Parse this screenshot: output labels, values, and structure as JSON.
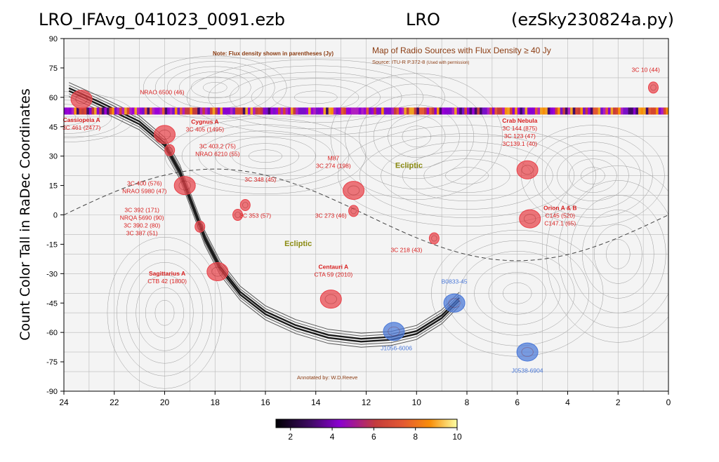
{
  "header": {
    "left": "LRO_IFAvg_041023_0091.ezb",
    "center": "LRO",
    "right": "(ezSky230824a.py)"
  },
  "chart_data": {
    "type": "scatter",
    "ylabel": "Count Color Tall in RaDec Coordinates",
    "xlim": [
      24,
      0
    ],
    "ylim": [
      -90,
      90
    ],
    "x_ticks": [
      "24",
      "22",
      "20",
      "18",
      "16",
      "14",
      "12",
      "10",
      "8",
      "6",
      "4",
      "2",
      "0"
    ],
    "y_ticks": [
      "90",
      "75",
      "60",
      "45",
      "30",
      "15",
      "0",
      "-15",
      "-30",
      "-45",
      "-60",
      "-75",
      "-90"
    ],
    "map_title": "Map of Radio Sources with Flux Density ≥ 40 Jy",
    "map_source": "Source: ITU-R P.372-8",
    "map_source_note": "(Used with permission)",
    "map_note": "Note: Flux density shown in parentheses (Jy)",
    "annotator": "Annotated by: W.D.Reeve",
    "ecliptic_label": "Ecliptic",
    "observed_band": {
      "dec": 53,
      "ra_range": [
        24,
        0
      ]
    },
    "colorbar": {
      "ticks": [
        "2",
        "4",
        "6",
        "8",
        "10"
      ],
      "min": 1.3,
      "max": 10
    },
    "sources": [
      {
        "ra": 23.3,
        "dec": 59,
        "color": "red",
        "big": true
      },
      {
        "ra": 20.0,
        "dec": 41,
        "color": "red",
        "big": true
      },
      {
        "ra": 19.8,
        "dec": 33,
        "color": "red",
        "big": false
      },
      {
        "ra": 19.2,
        "dec": 15,
        "color": "red",
        "big": true
      },
      {
        "ra": 18.6,
        "dec": -6,
        "color": "red",
        "big": false
      },
      {
        "ra": 17.9,
        "dec": -29,
        "color": "red",
        "big": true
      },
      {
        "ra": 17.1,
        "dec": 0,
        "color": "red",
        "big": false
      },
      {
        "ra": 16.8,
        "dec": 5,
        "color": "red",
        "big": false
      },
      {
        "ra": 13.4,
        "dec": -43,
        "color": "red",
        "big": true
      },
      {
        "ra": 12.5,
        "dec": 12.5,
        "color": "red",
        "big": true
      },
      {
        "ra": 12.5,
        "dec": 2,
        "color": "red",
        "big": false
      },
      {
        "ra": 9.3,
        "dec": -12,
        "color": "red",
        "big": false
      },
      {
        "ra": 5.6,
        "dec": 23,
        "color": "red",
        "big": true
      },
      {
        "ra": 5.5,
        "dec": -2,
        "color": "red",
        "big": true
      },
      {
        "ra": 0.6,
        "dec": 65,
        "color": "red",
        "big": false
      },
      {
        "ra": 10.9,
        "dec": -59.5,
        "color": "blue",
        "big": true
      },
      {
        "ra": 8.5,
        "dec": -45,
        "color": "blue",
        "big": true
      },
      {
        "ra": 5.6,
        "dec": -70,
        "color": "blue",
        "big": true
      }
    ],
    "labels": [
      {
        "ra": 23.3,
        "dec": 47.5,
        "lines": [
          "Cassiopeia A",
          "3C 461 (2477)"
        ],
        "bold_first": true
      },
      {
        "ra": 20.1,
        "dec": 61.5,
        "lines": [
          "NRAO 6500 (46)"
        ],
        "bold_first": false
      },
      {
        "ra": 18.4,
        "dec": 46.5,
        "lines": [
          "Cygnus A",
          "3C 405 (1495)"
        ],
        "bold_first": true
      },
      {
        "ra": 17.9,
        "dec": 34,
        "lines": [
          "3C 403.2 (75)",
          "NRAO 6210 (55)"
        ],
        "bold_first": false
      },
      {
        "ra": 20.8,
        "dec": 15,
        "lines": [
          "3C 400 (576)",
          "NRAO 5980 (47)"
        ],
        "bold_first": false
      },
      {
        "ra": 16.2,
        "dec": 17,
        "lines": [
          "3C 348 (45)"
        ],
        "bold_first": false
      },
      {
        "ra": 16.4,
        "dec": -1.5,
        "lines": [
          "3C 353 (57)"
        ],
        "bold_first": false
      },
      {
        "ra": 20.9,
        "dec": 1.5,
        "lines": [
          "3C 392 (171)",
          "NRQA 5690 (90)",
          "3C 390.2 (80)",
          "3C 387  (51)"
        ],
        "bold_first": false
      },
      {
        "ra": 19.9,
        "dec": -31,
        "lines": [
          "Sagittarius A",
          "CTB 42 (1800)"
        ],
        "bold_first": true
      },
      {
        "ra": 13.3,
        "dec": -27.5,
        "lines": [
          "Centauri A",
          "CTA 59 (2010)"
        ],
        "bold_first": true
      },
      {
        "ra": 13.3,
        "dec": 28,
        "lines": [
          "M87",
          "3C 274 (198)"
        ],
        "bold_first": false
      },
      {
        "ra": 13.4,
        "dec": -1.5,
        "lines": [
          "3C 273 (46)"
        ],
        "bold_first": false
      },
      {
        "ra": 10.4,
        "dec": -19,
        "lines": [
          "3C 218 (43)"
        ],
        "bold_first": false
      },
      {
        "ra": 5.9,
        "dec": 47,
        "lines": [
          "Crab Nebula",
          "3C 144 (875)",
          "3C 123 (47)",
          "3C139.1 (40)"
        ],
        "bold_first": true
      },
      {
        "ra": 4.3,
        "dec": 2.5,
        "lines": [
          "Orion A & B",
          "C145 (520)",
          "C147.1 (65)"
        ],
        "bold_first": true
      },
      {
        "ra": 0.9,
        "dec": 73,
        "lines": [
          "3C 10 (44)"
        ],
        "bold_first": false
      },
      {
        "ra": 8.5,
        "dec": -35,
        "lines": [
          "B0833-45"
        ],
        "bold_first": false
      },
      {
        "ra": 10.8,
        "dec": -69,
        "lines": [
          "J1056-6006"
        ],
        "bold_first": false
      },
      {
        "ra": 5.6,
        "dec": -80.5,
        "lines": [
          "J0538-6904"
        ],
        "bold_first": false
      }
    ],
    "colors": {
      "red": "#e8424a",
      "blue": "#4a78d8",
      "label_red": "#d81e1e",
      "brown": "#8b3c12",
      "olive": "#8a8a10"
    }
  }
}
